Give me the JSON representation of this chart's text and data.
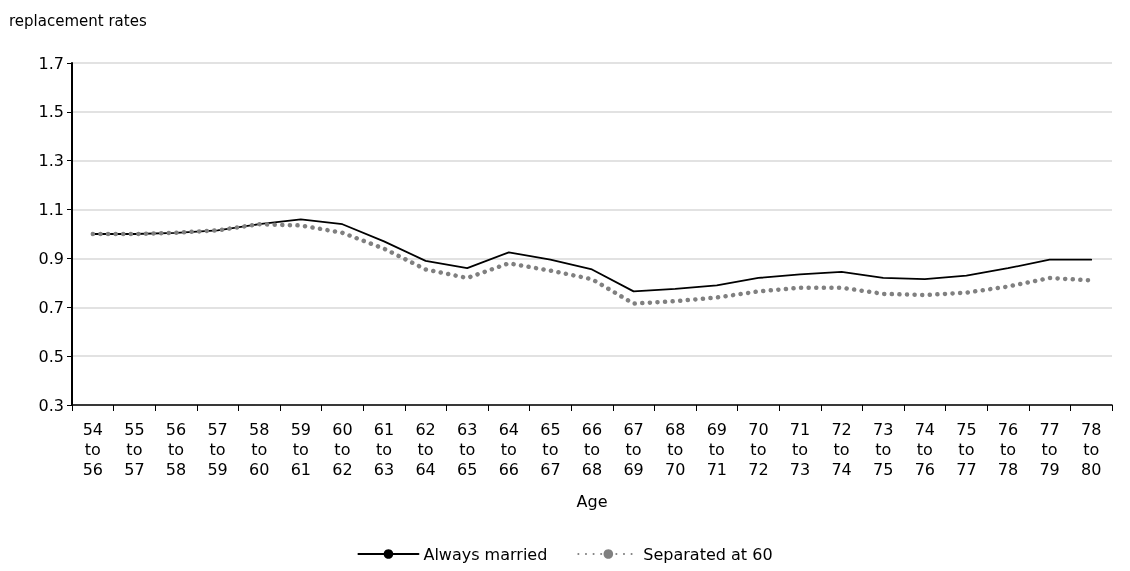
{
  "chart_data": {
    "type": "line",
    "ylabel": "replacement rates",
    "xlabel": "Age",
    "categories": [
      "54\nto\n56",
      "55\nto\n57",
      "56\nto\n58",
      "57\nto\n59",
      "58\nto\n60",
      "59\nto\n61",
      "60\nto\n62",
      "61\nto\n63",
      "62\nto\n64",
      "63\nto\n65",
      "64\nto\n66",
      "65\nto\n67",
      "66\nto\n68",
      "67\nto\n69",
      "68\nto\n70",
      "69\nto\n71",
      "70\nto\n72",
      "71\nto\n73",
      "72\nto\n74",
      "73\nto\n75",
      "74\nto\n76",
      "75\nto\n77",
      "76\nto\n78",
      "77\nto\n79",
      "78\nto\n80"
    ],
    "series": [
      {
        "name": "Always married",
        "color": "#000000",
        "line_style": "solid",
        "values": [
          1.0,
          1.0,
          1.005,
          1.015,
          1.04,
          1.06,
          1.04,
          0.97,
          0.89,
          0.86,
          0.925,
          0.895,
          0.855,
          0.765,
          0.775,
          0.79,
          0.82,
          0.835,
          0.845,
          0.82,
          0.815,
          0.83,
          0.86,
          0.895,
          0.895
        ]
      },
      {
        "name": "Separated at 60",
        "color": "#808080",
        "line_style": "dotted",
        "values": [
          1.0,
          1.0,
          1.005,
          1.015,
          1.04,
          1.035,
          1.005,
          0.94,
          0.855,
          0.82,
          0.88,
          0.85,
          0.815,
          0.715,
          0.725,
          0.74,
          0.765,
          0.78,
          0.78,
          0.755,
          0.75,
          0.76,
          0.785,
          0.82,
          0.81
        ]
      }
    ],
    "ylim": [
      0.3,
      1.7
    ],
    "yticks": [
      0.3,
      0.5,
      0.7,
      0.9,
      1.1,
      1.3,
      1.5,
      1.7
    ],
    "grid": "y",
    "legend": "bottom",
    "marker": "none"
  }
}
